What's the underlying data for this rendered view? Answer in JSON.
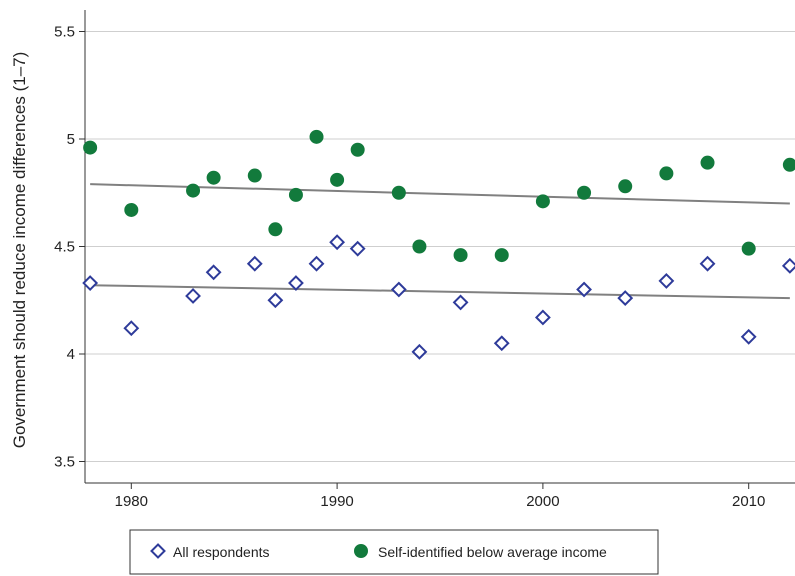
{
  "chart_data": {
    "type": "scatter",
    "title": "",
    "xlabel": "",
    "ylabel": "Government should reduce income differences (1–7)",
    "xlim": [
      1977.75,
      2012.25
    ],
    "ylim": [
      3.4,
      5.6
    ],
    "xticks": [
      "1980",
      "1990",
      "2000",
      "2010"
    ],
    "yticks": [
      "3.5",
      "4",
      "4.5",
      "5",
      "5.5"
    ],
    "grid": "horizontal",
    "legend_position": "bottom",
    "series": [
      {
        "name": "All respondents",
        "marker": "hollow-diamond",
        "color": "#2e3b9a",
        "x": [
          1978,
          1980,
          1983,
          1984,
          1986,
          1987,
          1988,
          1989,
          1990,
          1991,
          1993,
          1994,
          1996,
          1998,
          2000,
          2002,
          2004,
          2006,
          2008,
          2010,
          2012
        ],
        "y": [
          4.33,
          4.12,
          4.27,
          4.38,
          4.42,
          4.25,
          4.33,
          4.42,
          4.52,
          4.49,
          4.3,
          4.01,
          4.24,
          4.05,
          4.17,
          4.3,
          4.26,
          4.34,
          4.42,
          4.08,
          4.41
        ],
        "trend": {
          "x": [
            1978,
            2012
          ],
          "y": [
            4.32,
            4.26
          ]
        }
      },
      {
        "name": "Self-identified below average income",
        "marker": "filled-circle",
        "color": "#127a3c",
        "x": [
          1978,
          1980,
          1983,
          1984,
          1986,
          1987,
          1988,
          1989,
          1990,
          1991,
          1993,
          1994,
          1996,
          1998,
          2000,
          2002,
          2004,
          2006,
          2008,
          2010,
          2012
        ],
        "y": [
          4.96,
          4.67,
          4.76,
          4.82,
          4.83,
          4.58,
          4.74,
          5.01,
          4.81,
          4.95,
          4.75,
          4.5,
          4.46,
          4.46,
          4.71,
          4.75,
          4.78,
          4.84,
          4.89,
          4.49,
          4.88
        ],
        "trend": {
          "x": [
            1978,
            2012
          ],
          "y": [
            4.79,
            4.7
          ]
        }
      }
    ]
  },
  "colors": {
    "grid": "#cfcfcf",
    "axis": "#333333",
    "trend_line": "#808080"
  }
}
